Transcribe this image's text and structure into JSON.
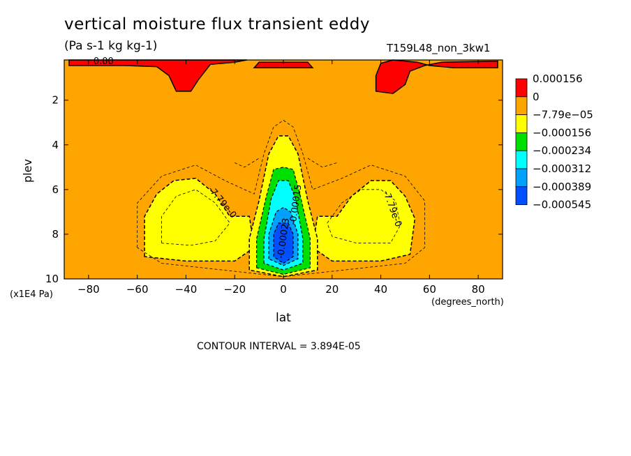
{
  "chart_data": {
    "type": "heatmap",
    "title": "vertical moisture flux transient eddy",
    "units": "(Pa s-1 kg kg-1)",
    "run_label": "T159L48_non_3kw1",
    "xlabel": "lat",
    "xunits": "(degrees_north)",
    "ylabel": "plev",
    "yunits": "(x1E4 Pa)",
    "xlim": [
      -90,
      90
    ],
    "ylim": [
      0.2,
      10
    ],
    "y_inverted": true,
    "x_ticks": [
      -80,
      -60,
      -40,
      -20,
      0,
      20,
      40,
      60,
      80
    ],
    "y_ticks": [
      2,
      4,
      6,
      8,
      10
    ],
    "contour_interval_label": "CONTOUR INTERVAL = 3.894E-05",
    "contour_labels": [
      "0.00",
      "-7.79e-0",
      "-7.79e-0",
      "-0.00015",
      "-0.00023"
    ],
    "colorbar": {
      "levels": [
        "0.000156",
        "0",
        "−7.79e−05",
        "−0.000156",
        "−0.000234",
        "−0.000312",
        "−0.000389",
        "−0.000545"
      ],
      "colors": [
        "#ff0000",
        "#ffa500",
        "#ffff00",
        "#00e000",
        "#00ffff",
        "#00a0ff",
        "#0050ff"
      ]
    },
    "regions": [
      {
        "name": "positive-flux-upper-sh",
        "level_index": 0,
        "lat_center": -43,
        "plev_center": 1.0
      },
      {
        "name": "positive-flux-upper-nh",
        "level_index": 0,
        "lat_center": 46,
        "plev_center": 1.0
      },
      {
        "name": "negative-flux-lobe-sh",
        "level_index": 2,
        "lat_center": -35,
        "plev_center": 7.0
      },
      {
        "name": "negative-flux-lobe-nh",
        "level_index": 2,
        "lat_center": 32,
        "plev_center": 7.0
      },
      {
        "name": "negative-flux-core-equator",
        "level_index": 6,
        "lat_center": 0,
        "plev_center": 8.5
      }
    ]
  }
}
